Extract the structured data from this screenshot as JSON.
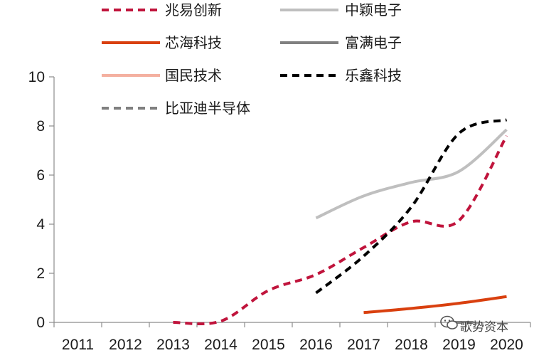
{
  "chart_data": {
    "type": "line",
    "title": "",
    "xlabel": "",
    "ylabel": "",
    "x": [
      2011,
      2012,
      2013,
      2014,
      2015,
      2016,
      2017,
      2018,
      2019,
      2020
    ],
    "categories": [
      "2011",
      "2012",
      "2013",
      "2014",
      "2015",
      "2016",
      "2017",
      "2018",
      "2019",
      "2020"
    ],
    "ylim": [
      0,
      10
    ],
    "yticks": [
      0,
      2,
      4,
      6,
      8,
      10
    ],
    "grid": false,
    "legend_position": "top",
    "series": [
      {
        "name": "兆易创新",
        "color": "#c0143c",
        "dash": "dashed",
        "x": [
          2013,
          2014,
          2015,
          2016,
          2017,
          2018,
          2019,
          2020
        ],
        "values": [
          0.0,
          0.05,
          1.3,
          1.95,
          3.05,
          4.1,
          4.15,
          7.6
        ]
      },
      {
        "name": "中颖电子",
        "color": "#bfbfbf",
        "dash": "solid",
        "x": [
          2016,
          2017,
          2018,
          2019,
          2020
        ],
        "values": [
          4.25,
          5.15,
          5.7,
          6.15,
          7.85
        ]
      },
      {
        "name": "芯海科技",
        "color": "#d9400f",
        "dash": "solid",
        "x": [
          2017,
          2018,
          2019,
          2020
        ],
        "values": [
          0.4,
          0.57,
          0.78,
          1.05
        ]
      },
      {
        "name": "富满电子",
        "color": "#808080",
        "dash": "solid",
        "x": [],
        "values": []
      },
      {
        "name": "国民技术",
        "color": "#f4b0a0",
        "dash": "solid",
        "x": [],
        "values": []
      },
      {
        "name": "乐鑫科技",
        "color": "#000000",
        "dash": "dashed",
        "x": [
          2016,
          2017,
          2018,
          2019,
          2020
        ],
        "values": [
          1.2,
          2.7,
          4.7,
          7.7,
          8.25
        ]
      },
      {
        "name": "比亚迪半导体",
        "color": "#808080",
        "dash": "dashed",
        "x": [
          2018.9
        ],
        "values": [
          0.0
        ]
      }
    ]
  },
  "watermark": {
    "text": "歌势资本",
    "icon": "wechat-icon"
  }
}
